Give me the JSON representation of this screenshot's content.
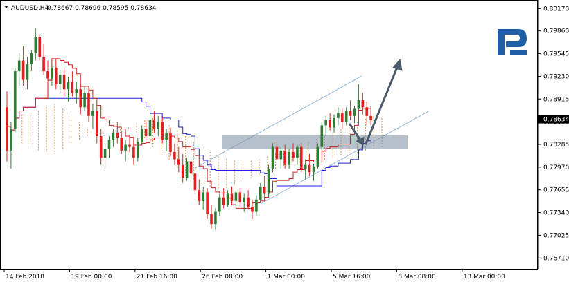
{
  "header": {
    "symbol_label": "AUDUSD,H4",
    "ohlc_text": "0.78667 0.78696 0.78595 0.78634"
  },
  "colors": {
    "bull": "#2e7d32",
    "bear": "#e01f1f",
    "kijun": "#1f1fd6",
    "tenkan": "#d21b1b",
    "cloud_a": "#d98a3a",
    "cloud_b": "#b97fb0",
    "channel": "#8fb4d9",
    "zone": "#7c8ea0",
    "arrow": "#4a5a6a",
    "logo": "#1f5fa6",
    "price_tag_bg": "#000000"
  },
  "icons": {
    "menu": "triangle-down-icon",
    "logo": "brand-r-logo"
  },
  "chart_data": {
    "type": "candlestick",
    "symbol": "AUDUSD",
    "timeframe": "H4",
    "last_price": "0.78634",
    "y_range": [
      0.7655,
      0.8025
    ],
    "y_ticks": [
      "0.80170",
      "0.79860",
      "0.79545",
      "0.79230",
      "0.78915",
      "0.78600",
      "0.78285",
      "0.77970",
      "0.77655",
      "0.77340",
      "0.77025",
      "0.76710"
    ],
    "x_ticks": [
      {
        "label": "14 Feb 2018",
        "i": 0
      },
      {
        "label": "19 Feb 00:00",
        "i": 16
      },
      {
        "label": "21 Feb 16:00",
        "i": 32
      },
      {
        "label": "26 Feb 08:00",
        "i": 48
      },
      {
        "label": "1 Mar 00:00",
        "i": 64
      },
      {
        "label": "5 Mar 16:00",
        "i": 80
      },
      {
        "label": "8 Mar 08:00",
        "i": 96
      },
      {
        "label": "13 Mar 00:00",
        "i": 112
      }
    ],
    "candles": [
      [
        0.788,
        0.7902,
        0.7805,
        0.782
      ],
      [
        0.782,
        0.786,
        0.7795,
        0.785
      ],
      [
        0.785,
        0.7935,
        0.7845,
        0.793
      ],
      [
        0.793,
        0.7955,
        0.791,
        0.7945
      ],
      [
        0.7945,
        0.7965,
        0.791,
        0.7918
      ],
      [
        0.7918,
        0.795,
        0.7905,
        0.794
      ],
      [
        0.794,
        0.796,
        0.793,
        0.7955
      ],
      [
        0.7955,
        0.799,
        0.7945,
        0.7978
      ],
      [
        0.7978,
        0.798,
        0.7945,
        0.795
      ],
      [
        0.795,
        0.7968,
        0.7925,
        0.793
      ],
      [
        0.793,
        0.7945,
        0.7915,
        0.792
      ],
      [
        0.792,
        0.794,
        0.791,
        0.7935
      ],
      [
        0.7935,
        0.7948,
        0.7905,
        0.7912
      ],
      [
        0.7912,
        0.7932,
        0.79,
        0.7925
      ],
      [
        0.7925,
        0.7935,
        0.7895,
        0.7905
      ],
      [
        0.7905,
        0.7922,
        0.7888,
        0.7915
      ],
      [
        0.7915,
        0.793,
        0.7895,
        0.79
      ],
      [
        0.79,
        0.7915,
        0.7885,
        0.7905
      ],
      [
        0.7905,
        0.7912,
        0.787,
        0.788
      ],
      [
        0.788,
        0.791,
        0.7875,
        0.79
      ],
      [
        0.79,
        0.7905,
        0.786,
        0.7868
      ],
      [
        0.7868,
        0.7885,
        0.785,
        0.7875
      ],
      [
        0.7875,
        0.7882,
        0.783,
        0.784
      ],
      [
        0.784,
        0.785,
        0.78,
        0.781
      ],
      [
        0.781,
        0.783,
        0.7795,
        0.7822
      ],
      [
        0.7822,
        0.784,
        0.781,
        0.7835
      ],
      [
        0.7835,
        0.785,
        0.7825,
        0.7845
      ],
      [
        0.7845,
        0.786,
        0.783,
        0.7838
      ],
      [
        0.7838,
        0.7848,
        0.7815,
        0.782
      ],
      [
        0.782,
        0.7835,
        0.7805,
        0.7828
      ],
      [
        0.7828,
        0.7842,
        0.7818,
        0.7825
      ],
      [
        0.7825,
        0.7832,
        0.78,
        0.781
      ],
      [
        0.781,
        0.7838,
        0.7805,
        0.7832
      ],
      [
        0.7832,
        0.7855,
        0.7828,
        0.785
      ],
      [
        0.785,
        0.7862,
        0.7835,
        0.784
      ],
      [
        0.784,
        0.787,
        0.7838,
        0.7862
      ],
      [
        0.7862,
        0.7875,
        0.7845,
        0.785
      ],
      [
        0.785,
        0.7868,
        0.784,
        0.786
      ],
      [
        0.786,
        0.7866,
        0.783,
        0.7835
      ],
      [
        0.7835,
        0.785,
        0.782,
        0.7845
      ],
      [
        0.7845,
        0.7852,
        0.7812,
        0.7818
      ],
      [
        0.7818,
        0.783,
        0.78,
        0.7808
      ],
      [
        0.7808,
        0.7825,
        0.779,
        0.78
      ],
      [
        0.78,
        0.7815,
        0.7775,
        0.7782
      ],
      [
        0.7782,
        0.781,
        0.7778,
        0.7805
      ],
      [
        0.7805,
        0.7812,
        0.778,
        0.7788
      ],
      [
        0.7788,
        0.7798,
        0.776,
        0.7765
      ],
      [
        0.7765,
        0.778,
        0.7745,
        0.775
      ],
      [
        0.775,
        0.777,
        0.7738,
        0.7762
      ],
      [
        0.7762,
        0.7768,
        0.7725,
        0.7732
      ],
      [
        0.7732,
        0.7745,
        0.7712,
        0.7718
      ],
      [
        0.7718,
        0.774,
        0.771,
        0.7735
      ],
      [
        0.7735,
        0.776,
        0.773,
        0.7755
      ],
      [
        0.7755,
        0.7768,
        0.774,
        0.7745
      ],
      [
        0.7745,
        0.7765,
        0.7742,
        0.776
      ],
      [
        0.776,
        0.777,
        0.7745,
        0.775
      ],
      [
        0.775,
        0.7766,
        0.774,
        0.7762
      ],
      [
        0.7762,
        0.7768,
        0.7742,
        0.7748
      ],
      [
        0.7748,
        0.776,
        0.7735,
        0.7755
      ],
      [
        0.7755,
        0.7765,
        0.7738,
        0.7742
      ],
      [
        0.7742,
        0.7752,
        0.7725,
        0.7735
      ],
      [
        0.7735,
        0.7758,
        0.773,
        0.7752
      ],
      [
        0.7752,
        0.7775,
        0.7748,
        0.777
      ],
      [
        0.777,
        0.7785,
        0.7755,
        0.776
      ],
      [
        0.776,
        0.78,
        0.7755,
        0.7795
      ],
      [
        0.7795,
        0.783,
        0.779,
        0.7825
      ],
      [
        0.7825,
        0.7832,
        0.78,
        0.7808
      ],
      [
        0.7808,
        0.7825,
        0.7795,
        0.782
      ],
      [
        0.782,
        0.7828,
        0.7795,
        0.78
      ],
      [
        0.78,
        0.7822,
        0.7795,
        0.7818
      ],
      [
        0.7818,
        0.783,
        0.7805,
        0.781
      ],
      [
        0.781,
        0.7828,
        0.78,
        0.7825
      ],
      [
        0.7825,
        0.783,
        0.779,
        0.7795
      ],
      [
        0.7795,
        0.7808,
        0.778,
        0.78
      ],
      [
        0.78,
        0.7815,
        0.7785,
        0.779
      ],
      [
        0.779,
        0.7802,
        0.7778,
        0.7798
      ],
      [
        0.7798,
        0.783,
        0.7795,
        0.7825
      ],
      [
        0.7825,
        0.786,
        0.782,
        0.7855
      ],
      [
        0.7855,
        0.7868,
        0.784,
        0.7862
      ],
      [
        0.7862,
        0.7872,
        0.7848,
        0.7852
      ],
      [
        0.7852,
        0.787,
        0.7845,
        0.7865
      ],
      [
        0.7865,
        0.788,
        0.7855,
        0.7872
      ],
      [
        0.7872,
        0.7878,
        0.785,
        0.786
      ],
      [
        0.786,
        0.788,
        0.7855,
        0.7875
      ],
      [
        0.7875,
        0.789,
        0.7862,
        0.7868
      ],
      [
        0.7868,
        0.7882,
        0.7858,
        0.7878
      ],
      [
        0.7878,
        0.7912,
        0.7875,
        0.789
      ],
      [
        0.789,
        0.79,
        0.787,
        0.788
      ],
      [
        0.788,
        0.7888,
        0.7855,
        0.7868
      ],
      [
        0.7868,
        0.788,
        0.7855,
        0.7862
      ]
    ],
    "ichimoku_note": "Ichimoku cloud",
    "drawings": [
      "ascending-channel",
      "support-zone",
      "down-arrow",
      "up-arrow"
    ]
  },
  "layout": {
    "plot_left": 4,
    "plot_right": 776,
    "plot_top": 4,
    "plot_bottom": 390
  }
}
